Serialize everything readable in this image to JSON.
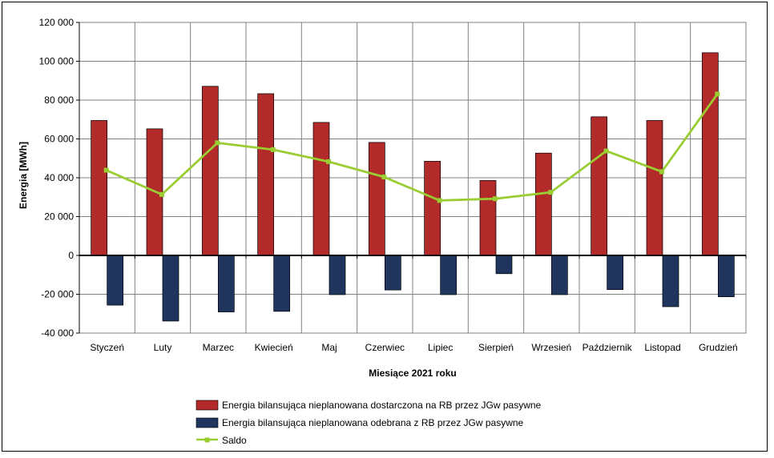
{
  "chart_data": {
    "type": "bar",
    "title": "",
    "xlabel": "Miesiące 2021  roku",
    "ylabel": "Energia [MWh]",
    "ylim": [
      -40000,
      120000
    ],
    "yticks": [
      -40000,
      -20000,
      0,
      20000,
      40000,
      60000,
      80000,
      100000,
      120000
    ],
    "ytick_labels": [
      "-40 000",
      "-20 000",
      "0",
      "20 000",
      "40 000",
      "60 000",
      "80 000",
      "100 000",
      "120 000"
    ],
    "grid": true,
    "legend_position": "bottom",
    "categories": [
      "Styczeń",
      "Luty",
      "Marzec",
      "Kwiecień",
      "Maj",
      "Czerwiec",
      "Lipiec",
      "Sierpień",
      "Wrzesień",
      "Październik",
      "Listopad",
      "Grudzień"
    ],
    "series": [
      {
        "name": "Energia bilansująca nieplanowana dostarczona na RB przez JGw pasywne",
        "type": "bar",
        "color": "#B22A2A",
        "values": [
          69500,
          65200,
          87100,
          83300,
          68500,
          58200,
          48500,
          38600,
          52700,
          71400,
          69500,
          104400
        ]
      },
      {
        "name": "Energia bilansująca nieplanowana odebrana z RB przez JGw pasywne",
        "type": "bar",
        "color": "#1F355E",
        "values": [
          -25600,
          -33800,
          -29100,
          -28800,
          -20200,
          -17800,
          -20200,
          -9400,
          -20200,
          -17600,
          -26400,
          -21300
        ]
      },
      {
        "name": "Saldo",
        "type": "line",
        "color": "#9ACD32",
        "values": [
          43900,
          31400,
          58000,
          54500,
          48300,
          40400,
          28300,
          29200,
          32500,
          53800,
          43100,
          83100
        ]
      }
    ]
  }
}
